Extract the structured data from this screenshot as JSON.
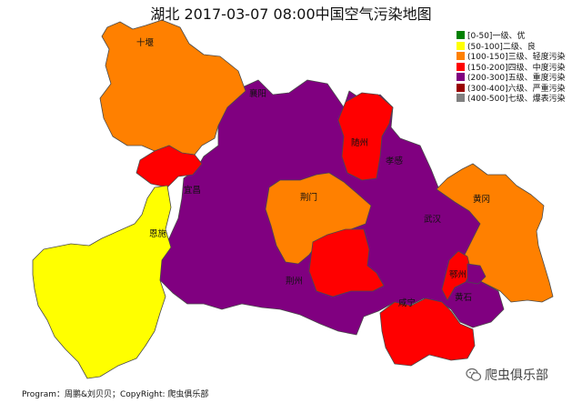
{
  "title": "湖北 2017-03-07 08:00中国空气污染地图",
  "legend": [
    {
      "label": "[0-50]一级、优",
      "color": "#008000"
    },
    {
      "label": "(50-100]二级、良",
      "color": "#ffff00"
    },
    {
      "label": "(100-150]三级、轻度污染",
      "color": "#ff8000"
    },
    {
      "label": "(150-200]四级、中度污染",
      "color": "#ff0000"
    },
    {
      "label": "(200-300]五级、重度污染",
      "color": "#800080"
    },
    {
      "label": "(300-400]六级、严重污染",
      "color": "#990000"
    },
    {
      "label": "(400-500]七级、爆表污染",
      "color": "#808080"
    }
  ],
  "cities": [
    {
      "id": "shiyan",
      "name": "十堰",
      "level": "(100-150]三级、轻度污染",
      "color": "#ff8000"
    },
    {
      "id": "xiangyang",
      "name": "襄阳",
      "level": "(200-300]五级、重度污染",
      "color": "#800080"
    },
    {
      "id": "suizhou",
      "name": "随州",
      "level": "(150-200]四级、中度污染",
      "color": "#ff0000"
    },
    {
      "id": "xiaogan",
      "name": "孝感",
      "level": "(200-300]五级、重度污染",
      "color": "#800080"
    },
    {
      "id": "huanggang",
      "name": "黄冈",
      "level": "(100-150]三级、轻度污染",
      "color": "#ff8000"
    },
    {
      "id": "shennongjia",
      "name": "",
      "level": "(150-200]四级、中度污染",
      "color": "#ff0000"
    },
    {
      "id": "yichang",
      "name": "宜昌",
      "level": "(200-300]五级、重度污染",
      "color": "#800080"
    },
    {
      "id": "jingmen",
      "name": "荆门",
      "level": "(100-150]三级、轻度污染",
      "color": "#ff8000"
    },
    {
      "id": "wuhan",
      "name": "武汉",
      "level": "(200-300]五级、重度污染",
      "color": "#800080"
    },
    {
      "id": "enshi",
      "name": "恩施",
      "level": "(50-100]二级、良",
      "color": "#ffff00"
    },
    {
      "id": "jingzhou",
      "name": "荆州",
      "level": "(200-300]五级、重度污染",
      "color": "#800080"
    },
    {
      "id": "tianmen",
      "name": "",
      "level": "(150-200]四级、中度污染",
      "color": "#ff0000"
    },
    {
      "id": "xianning",
      "name": "",
      "level": "(150-200]四级、中度污染",
      "color": "#ff0000"
    },
    {
      "id": "ezhou",
      "name": "鄂州",
      "level": "(150-200]四级、中度污染",
      "color": "#ff0000"
    },
    {
      "id": "huangshi",
      "name": "黄石",
      "level": "(200-300]五级、重度污染",
      "color": "#800080"
    },
    {
      "id": "xiantao",
      "name": "咸宁",
      "level": "(200-300]五级、重度污染",
      "color": "#800080"
    }
  ],
  "credit": "Program：周鹏&刘贝贝；CopyRight: 爬虫俱乐部",
  "watermark": "爬虫俱乐部"
}
